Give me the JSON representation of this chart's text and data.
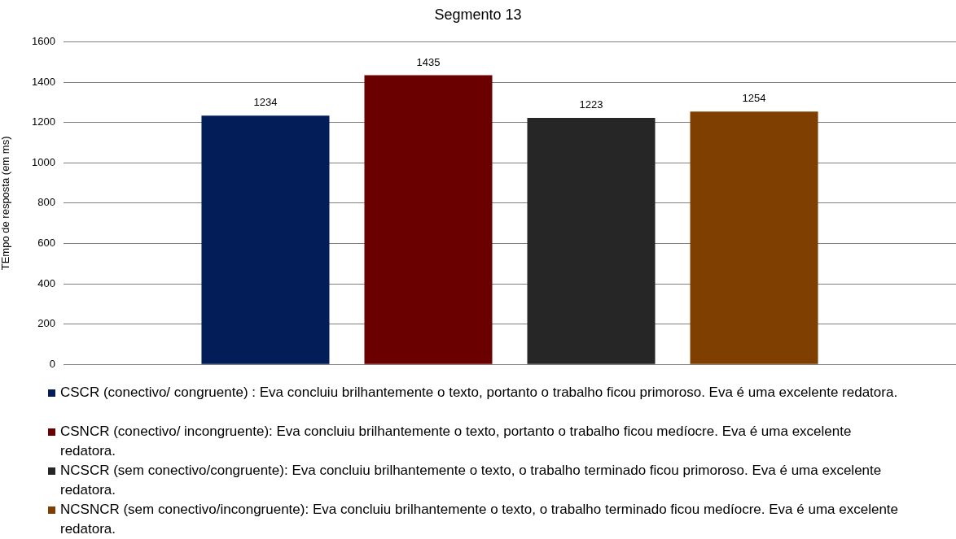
{
  "chart_data": {
    "type": "bar",
    "title": "Segmento 13",
    "ylabel": "TEmpo de resposta (em ms)",
    "categories": [
      null
    ],
    "series": [
      {
        "name": "CSCR (conectivo/ congruente) : Eva concluiu brilhantemente o texto, portanto o trabalho ficou primoroso. Eva é uma excelente redatora.",
        "color": "#021d57",
        "values": [
          1234
        ]
      },
      {
        "name": "CSNCR (conectivo/ incongruente): Eva concluiu brilhantemente o texto, portanto o trabalho ficou medíocre. Eva é uma excelente redatora.",
        "color": "#6b0000",
        "values": [
          1435
        ]
      },
      {
        "name": "NCSCR (sem conectivo/congruente): Eva concluiu brilhantemente o texto, o trabalho terminado ficou primoroso. Eva é uma excelente redatora.",
        "color": "#262626",
        "values": [
          1223
        ]
      },
      {
        "name": "NCSNCR (sem conectivo/incongruente): Eva concluiu brilhantemente o texto, o trabalho terminado ficou medíocre. Eva é uma excelente redatora.",
        "color": "#7f3f00",
        "values": [
          1254
        ]
      }
    ],
    "ylim": [
      0,
      1600
    ],
    "yticks": [
      0,
      200,
      400,
      600,
      800,
      1000,
      1200,
      1400,
      1600
    ],
    "grid": "y",
    "legend": "bottom",
    "tick_labels": "y",
    "data_labels": true
  }
}
